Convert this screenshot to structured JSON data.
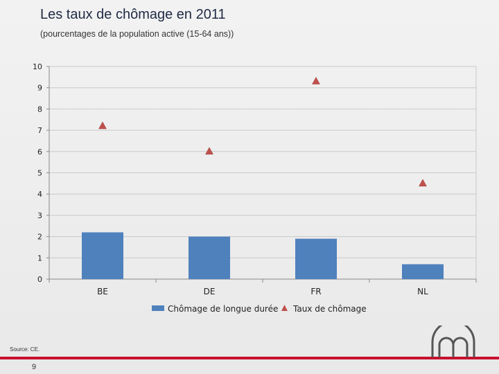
{
  "slide": {
    "title": "Les taux de chômage en 2011",
    "subtitle": "(pourcentages de la population active (15-64 ans))",
    "source": "Source: CE.",
    "page_number": "9",
    "accent_color": "#c8102e"
  },
  "chart_data": {
    "type": "bar",
    "categories": [
      "BE",
      "DE",
      "FR",
      "NL"
    ],
    "series": [
      {
        "name": "Chômage de longue durée",
        "kind": "bar",
        "color": "#4f81bd",
        "values": [
          2.2,
          2.0,
          1.9,
          0.7
        ]
      },
      {
        "name": "Taux de chômage",
        "kind": "marker-triangle",
        "color": "#c0504d",
        "values": [
          7.2,
          6.0,
          9.3,
          4.5
        ]
      }
    ],
    "ylim": [
      0,
      10
    ],
    "yticks": [
      "0",
      "1",
      "2",
      "3",
      "4",
      "5",
      "6",
      "7",
      "8",
      "9",
      "10"
    ],
    "grid": true,
    "legend_position": "bottom"
  }
}
